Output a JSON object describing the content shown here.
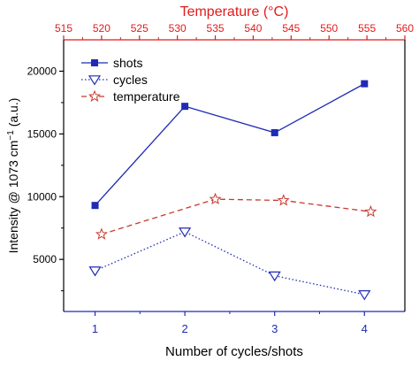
{
  "chart_data": {
    "type": "line",
    "top_axis": {
      "label": "Temperature (°C)",
      "range": [
        515,
        560
      ],
      "ticks": [
        515,
        520,
        525,
        530,
        535,
        540,
        545,
        550,
        555,
        560
      ],
      "color": "#e31a1c"
    },
    "bottom_axis": {
      "label": "Number of cycles/shots",
      "range": [
        0.65,
        4.45
      ],
      "ticks": [
        1,
        2,
        3,
        4
      ],
      "color": "#1f2bb5"
    },
    "y_axis": {
      "label_prefix": "Intensity @ 1073 cm",
      "label_sup": "−1",
      "label_suffix": " (a.u.)",
      "range": [
        850,
        22500
      ],
      "ticks": [
        5000,
        10000,
        15000,
        20000
      ],
      "tick_labels": [
        "5000",
        "10000",
        "15000",
        "20000"
      ]
    },
    "legend": {
      "position": "top-left",
      "entries": [
        "shots",
        "cycles",
        "temperature"
      ]
    },
    "series": [
      {
        "name": "shots",
        "axis": "bottom",
        "x": [
          1,
          2,
          3,
          4
        ],
        "y": [
          9300,
          17200,
          15100,
          19000
        ],
        "color": "#1f2bb5",
        "line": "solid",
        "marker": "filled-square"
      },
      {
        "name": "cycles",
        "axis": "bottom",
        "x": [
          1,
          2,
          3,
          4
        ],
        "y": [
          4100,
          7200,
          3700,
          2200
        ],
        "color": "#1f2bb5",
        "line": "dotted",
        "marker": "open-triangle-down"
      },
      {
        "name": "temperature",
        "axis": "top",
        "x": [
          520,
          535,
          544,
          555.5
        ],
        "y": [
          7000,
          9800,
          9700,
          8800
        ],
        "color": "#c8382f",
        "line": "dashed",
        "marker": "open-star"
      }
    ]
  }
}
